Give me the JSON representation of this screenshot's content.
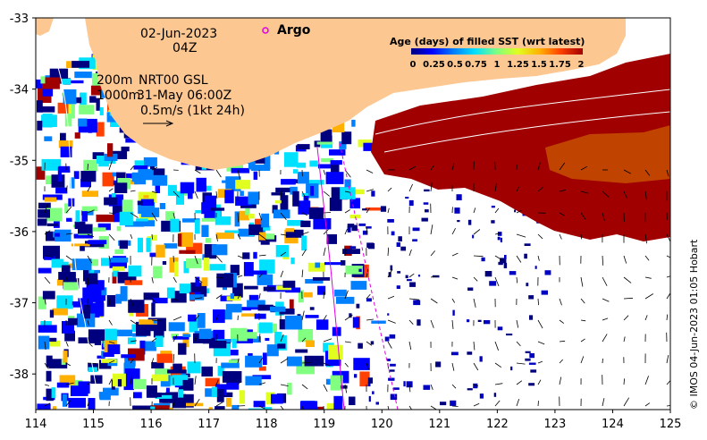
{
  "header": {
    "date": "02-Jun-2023",
    "time": "04Z",
    "contour_label_1": "200m",
    "contour_label_2": "1000m",
    "product": "NRT00 GSL",
    "product_time": "31-May 06:00Z",
    "vector_scale": "0.5m/s (1kt 24h)"
  },
  "argo": {
    "label": "Argo",
    "marker_color": "#e000e0"
  },
  "colorbar": {
    "title": "Age (days) of filled SST (wrt latest)",
    "ticks": [
      "0",
      "0.25",
      "0.5",
      "0.75",
      "1",
      "1.25",
      "1.5",
      "1.75",
      "2"
    ],
    "colors": [
      "#00007f",
      "#0000ff",
      "#0080ff",
      "#00e0ff",
      "#80ff80",
      "#e0ff20",
      "#ffb000",
      "#ff4000",
      "#a00000"
    ]
  },
  "axes": {
    "x_ticks": [
      "114",
      "115",
      "116",
      "117",
      "118",
      "119",
      "120",
      "121",
      "122",
      "123",
      "124",
      "125"
    ],
    "y_ticks": [
      "-33",
      "-34",
      "-35",
      "-36",
      "-37",
      "-38"
    ],
    "xlim": [
      114,
      125
    ],
    "ylim": [
      -38.5,
      -33
    ]
  },
  "colors": {
    "land": "#fdc792",
    "ocean_no_data": "#ffffff",
    "recent": "#a00000"
  },
  "credit": "© IMOS 04-Jun-2023 01:05 Hobart"
}
